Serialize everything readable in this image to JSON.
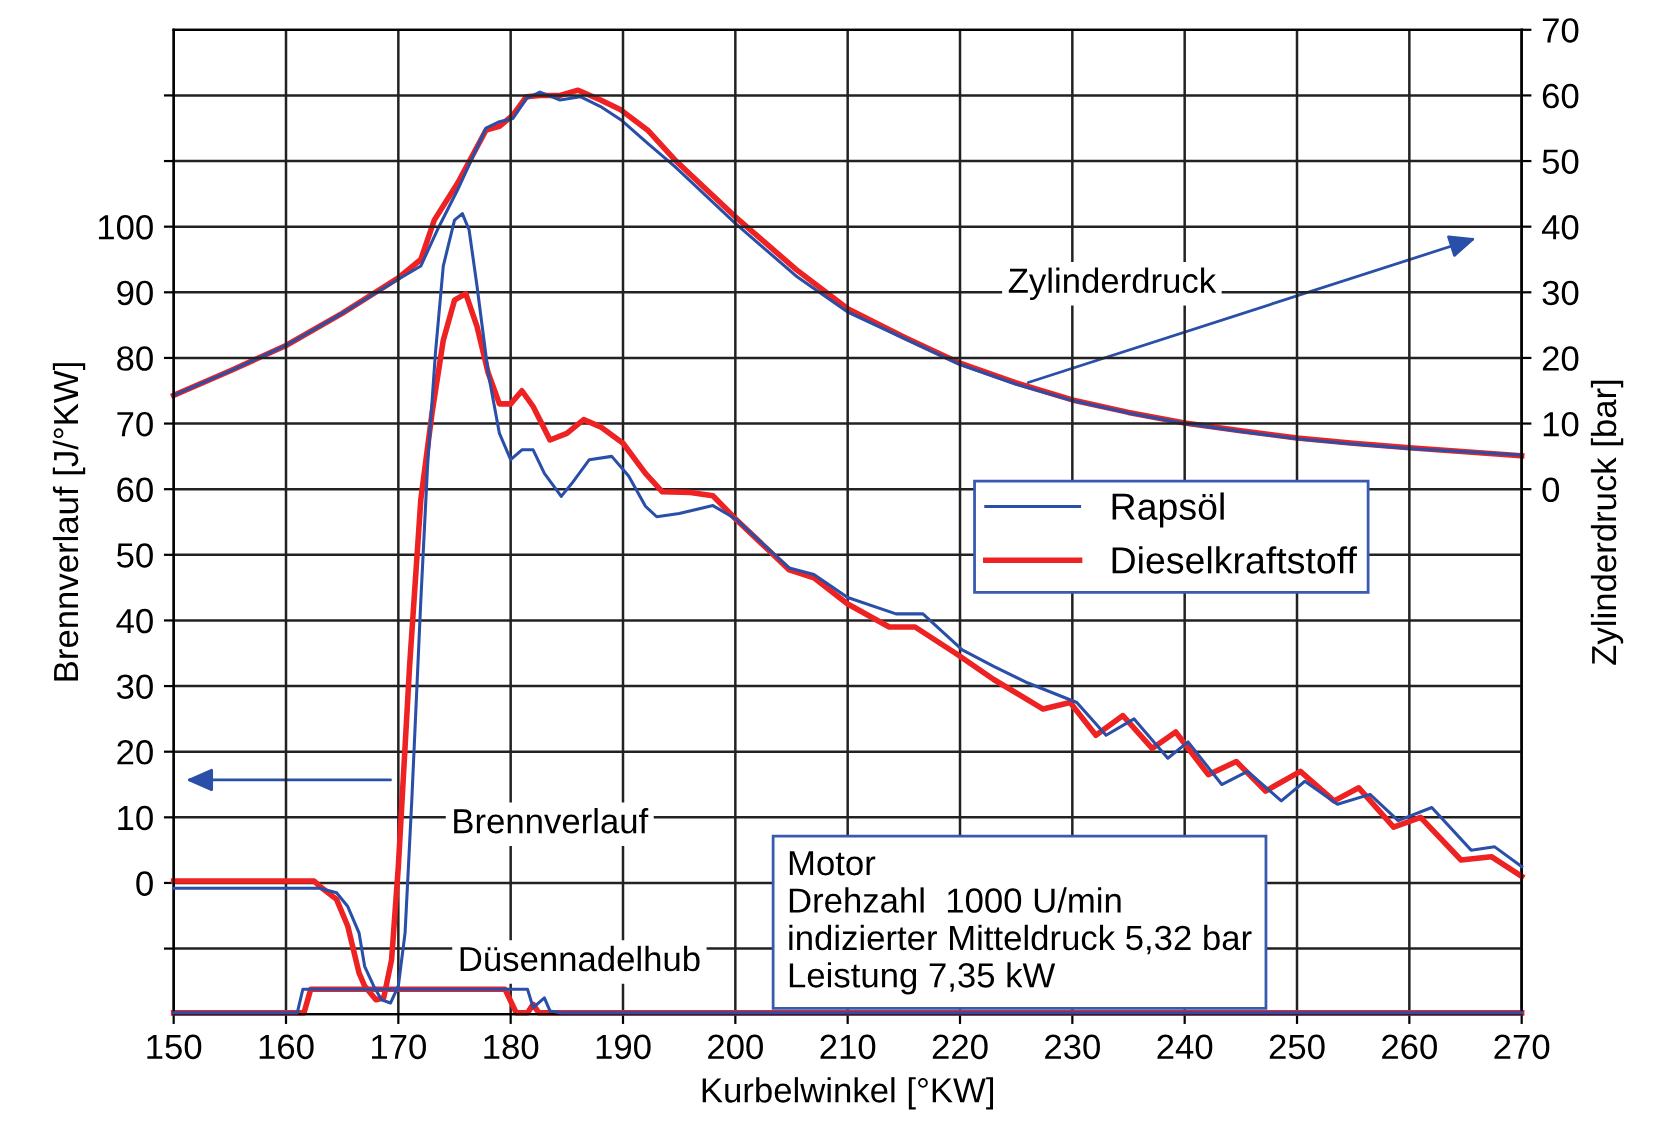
{
  "chart_data": {
    "type": "line",
    "xlabel": "Kurbelwinkel [°KW]",
    "ylabel": "Brennverlauf [J/°KW]",
    "y2label": "Zylinderdruck [bar]",
    "xlim": [
      150,
      270
    ],
    "xticks": [
      150,
      160,
      170,
      180,
      190,
      200,
      210,
      220,
      230,
      240,
      250,
      260,
      270
    ],
    "ylim": [
      -20,
      130
    ],
    "yticks": [
      {
        "value": -10,
        "label": null
      },
      0,
      10,
      20,
      30,
      40,
      50,
      60,
      70,
      80,
      90,
      100,
      {
        "value": 110,
        "label": null
      },
      {
        "value": 120,
        "label": null
      }
    ],
    "y2lim": [
      -80,
      70
    ],
    "y2ticks": [
      0,
      10,
      20,
      30,
      40,
      50,
      60,
      70
    ],
    "grid": true,
    "legend": "right",
    "marker": "none",
    "line_style": "solid",
    "annotations": [
      "Brennverlauf",
      "Düsennadelhub",
      "Zylinderdruck",
      "Motor\nDrehzahl  1000 U/min\nindizierter Mitteldruck 5,32 bar\nLeistung 7,35 kW"
    ],
    "series": [
      {
        "name": "Rapsöl",
        "color": "#2a4fa8",
        "axis": "y",
        "x": [
          150,
          163,
          164.5,
          165.5,
          166.5,
          167,
          167.8,
          168.5,
          169.3,
          170,
          170.6,
          171.2,
          172,
          172.6,
          173.3,
          174,
          175,
          175.7,
          176.3,
          177,
          178,
          179,
          180,
          181,
          182,
          183,
          184.5,
          185.5,
          187,
          189,
          190.5,
          192,
          193,
          195,
          198,
          200,
          204.8,
          207,
          210,
          214.3,
          216.7,
          220.2,
          223,
          226,
          230.4,
          233,
          235.5,
          238.5,
          240.3,
          243.3,
          245.6,
          248.6,
          250.7,
          253.6,
          256.5,
          259,
          262,
          265.5,
          267.6,
          270
        ],
        "values": [
          -0.8,
          -0.8,
          -1.5,
          -3.6,
          -7.6,
          -12.7,
          -15.7,
          -17.8,
          -18.3,
          -15.7,
          -7.6,
          12.7,
          43,
          63.5,
          80.7,
          94,
          101,
          102,
          99.5,
          91,
          77.7,
          68.5,
          64.5,
          66,
          66,
          62.4,
          58.9,
          61,
          64.5,
          65,
          62,
          57.4,
          55.8,
          56.3,
          57.5,
          55.5,
          48,
          47,
          43.5,
          41,
          41,
          35.5,
          33,
          30.5,
          27.5,
          22.5,
          25,
          19,
          21.5,
          15,
          17,
          12.5,
          15.5,
          12,
          13.5,
          9.5,
          11.5,
          5,
          5.5,
          2.5
        ]
      },
      {
        "name": "Dieselkraftstoff",
        "color": "#ee2222",
        "axis": "y",
        "x": [
          150,
          162.5,
          163,
          164.5,
          165.5,
          166.5,
          167,
          168,
          168.7,
          169.4,
          170,
          171,
          172,
          173,
          174,
          175,
          176,
          177,
          178,
          179,
          180,
          181,
          182,
          183.5,
          185,
          186.5,
          188,
          190,
          192,
          193.5,
          196,
          198,
          200,
          204.8,
          207,
          210,
          213.7,
          216,
          219.6,
          223,
          227.4,
          229.8,
          232.1,
          234.5,
          237.1,
          239.2,
          242.1,
          244.6,
          247.2,
          250.3,
          253.3,
          255.5,
          258.6,
          261,
          264.6,
          267.3,
          270
        ],
        "values": [
          0.3,
          0.3,
          -0.5,
          -2.5,
          -6.6,
          -13.7,
          -15.7,
          -17.8,
          -17.5,
          -11.7,
          2.5,
          33,
          58.4,
          71.6,
          82.7,
          88.8,
          89.8,
          84.8,
          77.7,
          73,
          73,
          75,
          72.6,
          67.5,
          68.5,
          70.6,
          69.5,
          67,
          62.4,
          59.6,
          59.5,
          59,
          55.5,
          47.7,
          46.5,
          42.5,
          39,
          39,
          35,
          31,
          26.5,
          27.5,
          22.5,
          25.5,
          20.5,
          23,
          16.5,
          18.5,
          14,
          17,
          12.5,
          14.5,
          8.5,
          10,
          3.5,
          4,
          1
        ]
      },
      {
        "color": "#2a4fa8",
        "axis": "y2",
        "x": [
          150,
          155,
          160,
          165,
          170,
          172,
          173.5,
          175.3,
          177.8,
          179,
          180.2,
          181.4,
          182.6,
          184.4,
          186.2,
          188,
          189.8,
          192.2,
          194.6,
          200,
          205.4,
          210,
          215,
          220,
          225,
          230,
          235,
          240,
          245,
          250,
          255,
          260,
          265,
          270
        ],
        "values": [
          14.3,
          18,
          21.9,
          26.8,
          32,
          34,
          39.6,
          45.7,
          55,
          56,
          56.5,
          59.5,
          60.5,
          59.3,
          59.8,
          58.3,
          56.3,
          52.7,
          49.2,
          40.5,
          32.5,
          27,
          23,
          19,
          16,
          13.5,
          11.6,
          10,
          8.8,
          7.7,
          6.9,
          6.2,
          5.7,
          5.2
        ]
      },
      {
        "color": "#ee2222",
        "axis": "y2",
        "x": [
          150,
          155,
          160,
          165,
          170,
          172,
          173.2,
          175.3,
          177.8,
          179,
          180.2,
          181.4,
          182.6,
          184.4,
          186,
          188,
          189.8,
          192.2,
          194.6,
          200,
          205.4,
          210,
          215,
          220,
          225,
          230,
          235,
          240,
          245,
          250,
          255,
          260,
          265,
          270
        ],
        "values": [
          14.3,
          18,
          21.9,
          26.8,
          32.2,
          35,
          41,
          46.7,
          54.7,
          55.3,
          57,
          59.8,
          60,
          60,
          60.8,
          59.3,
          57.8,
          54.7,
          50.2,
          41.5,
          33.5,
          27.5,
          23.2,
          19.2,
          16.2,
          13.6,
          11.7,
          10.1,
          8.9,
          7.8,
          7,
          6.3,
          5.7,
          5.1
        ]
      },
      {
        "color": "#2a4fa8",
        "axis": "y",
        "x": [
          150,
          161,
          161.5,
          181.5,
          182,
          183,
          183.5,
          184.5,
          270
        ],
        "values": [
          -19.8,
          -19.8,
          -16.2,
          -16.2,
          -19,
          -17.5,
          -19.5,
          -19.8,
          -19.8
        ]
      },
      {
        "color": "#ee2222",
        "axis": "y",
        "x": [
          150,
          161.6,
          162.2,
          179.5,
          180.5,
          181.5,
          182,
          182.5,
          270
        ],
        "values": [
          -19.8,
          -19.8,
          -16.2,
          -16.2,
          -19.8,
          -19.8,
          -18.5,
          -19.8,
          -19.8
        ]
      }
    ]
  }
}
